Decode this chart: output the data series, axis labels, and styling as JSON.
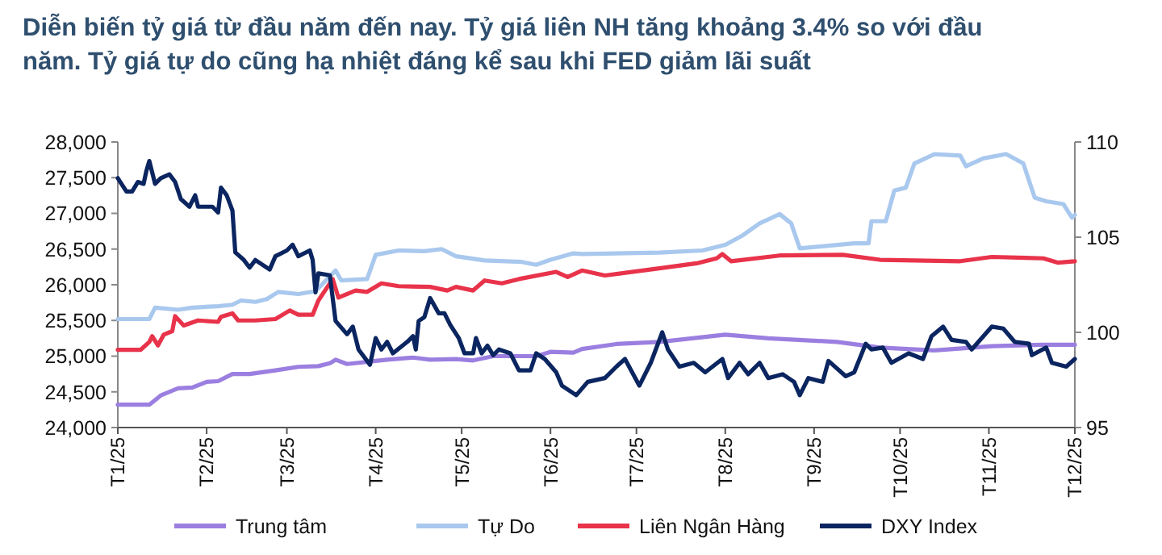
{
  "chart_data": {
    "type": "line",
    "title": "Diễn biến tỷ giá từ đầu năm đến nay. Tỷ giá liên NH tăng khoảng 3.4% so với đầu năm. Tỷ giá tự do cũng hạ nhiệt đáng kể sau khi FED giảm lãi suất",
    "xlim": [
      "2025-01-01",
      "2025-12-01"
    ],
    "xticks": [
      {
        "value": "2025-01-01",
        "label": "T1/25"
      },
      {
        "value": "2025-02-01",
        "label": "T2/25"
      },
      {
        "value": "2025-03-01",
        "label": "T3/25"
      },
      {
        "value": "2025-04-01",
        "label": "T4/25"
      },
      {
        "value": "2025-05-01",
        "label": "T5/25"
      },
      {
        "value": "2025-06-01",
        "label": "T6/25"
      },
      {
        "value": "2025-07-01",
        "label": "T7/25"
      },
      {
        "value": "2025-08-01",
        "label": "T8/25"
      },
      {
        "value": "2025-09-01",
        "label": "T9/25"
      },
      {
        "value": "2025-10-01",
        "label": "T10/25"
      },
      {
        "value": "2025-11-01",
        "label": "T11/25"
      },
      {
        "value": "2025-12-01",
        "label": "T12/25"
      }
    ],
    "ylim": [
      24000,
      28000
    ],
    "yticks": [
      {
        "value": 24000,
        "label": "24,000"
      },
      {
        "value": 24500,
        "label": "24,500"
      },
      {
        "value": 25000,
        "label": "25,000"
      },
      {
        "value": 25500,
        "label": "25,500"
      },
      {
        "value": 26000,
        "label": "26,000"
      },
      {
        "value": 26500,
        "label": "26,500"
      },
      {
        "value": 27000,
        "label": "27,000"
      },
      {
        "value": 27500,
        "label": "27,500"
      },
      {
        "value": 28000,
        "label": "28,000"
      }
    ],
    "y2lim": [
      95,
      110
    ],
    "y2ticks": [
      95,
      100,
      105,
      110
    ],
    "grid": false,
    "legend": "bottom",
    "marker": "none",
    "line_style": "solid",
    "series": [
      {
        "name": "Trung tâm",
        "color": "#9b7fe0",
        "x": [
          "2025-01-01",
          "2025-01-12",
          "2025-01-16",
          "2025-01-22",
          "2025-01-27",
          "2025-02-01",
          "2025-02-05",
          "2025-02-10",
          "2025-02-16",
          "2025-02-25",
          "2025-03-05",
          "2025-03-12",
          "2025-03-16",
          "2025-03-18",
          "2025-03-22",
          "2025-04-05",
          "2025-04-14",
          "2025-04-20",
          "2025-04-29",
          "2025-05-05",
          "2025-05-12",
          "2025-05-27",
          "2025-06-01",
          "2025-06-09",
          "2025-06-12",
          "2025-06-24",
          "2025-07-09",
          "2025-08-01",
          "2025-08-16",
          "2025-09-09",
          "2025-09-24",
          "2025-10-13",
          "2025-11-02",
          "2025-11-20",
          "2025-12-01"
        ],
        "values": [
          24320,
          24320,
          24450,
          24550,
          24560,
          24640,
          24650,
          24750,
          24750,
          24800,
          24850,
          24860,
          24900,
          24950,
          24890,
          24950,
          24980,
          24950,
          24960,
          24940,
          25000,
          25000,
          25060,
          25050,
          25100,
          25170,
          25200,
          25300,
          25250,
          25200,
          25120,
          25080,
          25140,
          25160,
          25160
        ]
      },
      {
        "name": "Tự Do",
        "color": "#a9c8ee",
        "x": [
          "2025-01-01",
          "2025-01-12",
          "2025-01-14",
          "2025-01-22",
          "2025-01-27",
          "2025-02-05",
          "2025-02-10",
          "2025-02-13",
          "2025-02-18",
          "2025-02-22",
          "2025-02-26",
          "2025-03-05",
          "2025-03-11",
          "2025-03-18",
          "2025-03-20",
          "2025-03-29",
          "2025-04-01",
          "2025-04-09",
          "2025-04-18",
          "2025-04-24",
          "2025-04-29",
          "2025-05-09",
          "2025-05-22",
          "2025-05-27",
          "2025-06-01",
          "2025-06-09",
          "2025-06-12",
          "2025-07-09",
          "2025-07-24",
          "2025-08-01",
          "2025-08-07",
          "2025-08-13",
          "2025-08-20",
          "2025-08-24",
          "2025-08-27",
          "2025-09-15",
          "2025-09-20",
          "2025-09-21",
          "2025-09-26",
          "2025-09-29",
          "2025-10-03",
          "2025-10-06",
          "2025-10-13",
          "2025-10-22",
          "2025-10-24",
          "2025-10-30",
          "2025-11-07",
          "2025-11-13",
          "2025-11-17",
          "2025-11-21",
          "2025-11-27",
          "2025-11-30",
          "2025-12-01"
        ],
        "values": [
          25520,
          25520,
          25680,
          25650,
          25680,
          25700,
          25720,
          25780,
          25760,
          25800,
          25900,
          25870,
          25910,
          26200,
          26060,
          26080,
          26420,
          26480,
          26470,
          26500,
          26400,
          26340,
          26320,
          26280,
          26350,
          26440,
          26430,
          26450,
          26480,
          26560,
          26690,
          26860,
          26990,
          26860,
          26510,
          26580,
          26580,
          26890,
          26890,
          27320,
          27360,
          27700,
          27830,
          27810,
          27660,
          27770,
          27830,
          27700,
          27220,
          27170,
          27130,
          26940,
          26980
        ]
      },
      {
        "name": "Liên Ngân Hàng",
        "color": "#e8334a",
        "x": [
          "2025-01-01",
          "2025-01-09",
          "2025-01-12",
          "2025-01-13",
          "2025-01-15",
          "2025-01-17",
          "2025-01-20",
          "2025-01-21",
          "2025-01-24",
          "2025-01-29",
          "2025-02-05",
          "2025-02-06",
          "2025-02-10",
          "2025-02-12",
          "2025-02-18",
          "2025-02-25",
          "2025-03-02",
          "2025-03-05",
          "2025-03-10",
          "2025-03-12",
          "2025-03-17",
          "2025-03-19",
          "2025-03-25",
          "2025-03-29",
          "2025-04-03",
          "2025-04-09",
          "2025-04-20",
          "2025-04-26",
          "2025-04-29",
          "2025-05-05",
          "2025-05-09",
          "2025-05-15",
          "2025-05-21",
          "2025-06-03",
          "2025-06-07",
          "2025-06-12",
          "2025-06-20",
          "2025-07-09",
          "2025-07-22",
          "2025-07-29",
          "2025-07-31",
          "2025-08-03",
          "2025-08-20",
          "2025-09-11",
          "2025-09-24",
          "2025-10-22",
          "2025-11-02",
          "2025-11-20",
          "2025-11-25",
          "2025-12-01"
        ],
        "values": [
          25090,
          25090,
          25200,
          25280,
          25150,
          25300,
          25350,
          25560,
          25430,
          25500,
          25480,
          25550,
          25600,
          25500,
          25500,
          25520,
          25640,
          25580,
          25580,
          25780,
          26080,
          25820,
          25920,
          25900,
          26020,
          25980,
          25970,
          25920,
          25970,
          25920,
          26060,
          26020,
          26080,
          26180,
          26110,
          26200,
          26130,
          26230,
          26300,
          26370,
          26430,
          26330,
          26410,
          26420,
          26350,
          26330,
          26390,
          26370,
          26310,
          26330
        ]
      },
      {
        "name": "DXY Index",
        "color": "#0b2560",
        "axis": "y2",
        "x": [
          "2025-01-01",
          "2025-01-04",
          "2025-01-06",
          "2025-01-08",
          "2025-01-10",
          "2025-01-11",
          "2025-01-12",
          "2025-01-14",
          "2025-01-16",
          "2025-01-19",
          "2025-01-21",
          "2025-01-23",
          "2025-01-26",
          "2025-01-28",
          "2025-01-29",
          "2025-02-03",
          "2025-02-05",
          "2025-02-06",
          "2025-02-08",
          "2025-02-10",
          "2025-02-11",
          "2025-02-14",
          "2025-02-16",
          "2025-02-18",
          "2025-02-23",
          "2025-02-25",
          "2025-03-01",
          "2025-03-03",
          "2025-03-05",
          "2025-03-09",
          "2025-03-10",
          "2025-03-11",
          "2025-03-12",
          "2025-03-16",
          "2025-03-18",
          "2025-03-22",
          "2025-03-24",
          "2025-03-26",
          "2025-03-30",
          "2025-04-01",
          "2025-04-03",
          "2025-04-05",
          "2025-04-07",
          "2025-04-12",
          "2025-04-14",
          "2025-04-15",
          "2025-04-16",
          "2025-04-18",
          "2025-04-20",
          "2025-04-23",
          "2025-04-25",
          "2025-04-27",
          "2025-04-30",
          "2025-05-02",
          "2025-05-05",
          "2025-05-06",
          "2025-05-08",
          "2025-05-10",
          "2025-05-12",
          "2025-05-14",
          "2025-05-18",
          "2025-05-21",
          "2025-05-25",
          "2025-05-27",
          "2025-05-30",
          "2025-06-03",
          "2025-06-05",
          "2025-06-10",
          "2025-06-14",
          "2025-06-20",
          "2025-06-24",
          "2025-06-27",
          "2025-07-02",
          "2025-07-06",
          "2025-07-10",
          "2025-07-12",
          "2025-07-16",
          "2025-07-21",
          "2025-07-25",
          "2025-07-31",
          "2025-08-02",
          "2025-08-06",
          "2025-08-09",
          "2025-08-13",
          "2025-08-16",
          "2025-08-21",
          "2025-08-25",
          "2025-08-27",
          "2025-08-30",
          "2025-09-04",
          "2025-09-06",
          "2025-09-12",
          "2025-09-15",
          "2025-09-19",
          "2025-09-21",
          "2025-09-25",
          "2025-09-28",
          "2025-10-04",
          "2025-10-09",
          "2025-10-12",
          "2025-10-16",
          "2025-10-19",
          "2025-10-24",
          "2025-10-26",
          "2025-11-02",
          "2025-11-06",
          "2025-11-10",
          "2025-11-15",
          "2025-11-16",
          "2025-11-21",
          "2025-11-23",
          "2025-11-28",
          "2025-12-01"
        ],
        "values": [
          108.1,
          107.4,
          107.4,
          107.9,
          107.8,
          108.5,
          109.0,
          107.8,
          108.1,
          108.3,
          107.9,
          107.0,
          106.6,
          107.2,
          106.6,
          106.6,
          106.3,
          107.6,
          107.2,
          106.4,
          104.2,
          103.8,
          103.4,
          103.8,
          103.3,
          104.0,
          104.3,
          104.6,
          104.0,
          104.3,
          103.8,
          102.1,
          103.1,
          103.0,
          100.6,
          99.9,
          100.3,
          99.1,
          98.3,
          99.7,
          99.1,
          99.5,
          98.9,
          99.5,
          99.8,
          99.1,
          100.6,
          100.8,
          101.8,
          101.0,
          101.0,
          100.4,
          99.7,
          98.9,
          98.9,
          99.7,
          98.9,
          99.3,
          98.8,
          99.1,
          98.9,
          98.0,
          98.0,
          98.9,
          98.6,
          97.9,
          97.2,
          96.7,
          97.4,
          97.6,
          98.2,
          98.6,
          97.2,
          98.4,
          100.0,
          99.1,
          98.2,
          98.4,
          97.9,
          98.6,
          97.6,
          98.4,
          97.8,
          98.4,
          97.6,
          97.8,
          97.4,
          96.7,
          97.6,
          97.4,
          98.5,
          97.7,
          97.9,
          99.4,
          99.1,
          99.2,
          98.4,
          98.9,
          98.6,
          99.8,
          100.3,
          99.6,
          99.5,
          99.1,
          100.3,
          100.2,
          99.5,
          99.4,
          98.8,
          99.2,
          98.4,
          98.2,
          98.6
        ]
      }
    ]
  }
}
